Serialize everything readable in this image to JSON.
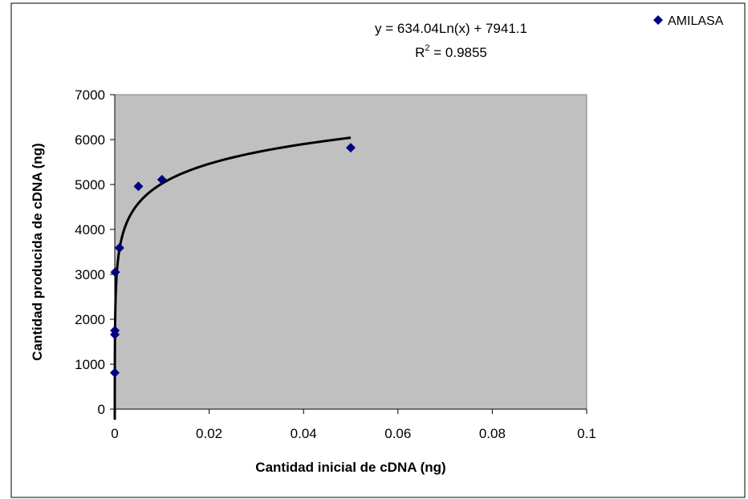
{
  "chart_data": {
    "type": "scatter",
    "title": "",
    "xlabel": "Cantidad inicial de cDNA (ng)",
    "ylabel": "Cantidad producida de cDNA (ng)",
    "xlim": [
      0,
      0.1
    ],
    "ylim": [
      0,
      7000
    ],
    "x_ticks": [
      "0",
      "0.02",
      "0.04",
      "0.06",
      "0.08",
      "0.1"
    ],
    "y_ticks": [
      "0",
      "1000",
      "2000",
      "3000",
      "4000",
      "5000",
      "6000",
      "7000"
    ],
    "grid": false,
    "plot_background": "#c0c0c0",
    "series": [
      {
        "name": "AMILASA",
        "marker": "diamond",
        "color": "#000080",
        "x": [
          1e-06,
          1e-05,
          2e-05,
          0.0001,
          0.001,
          0.005,
          0.01,
          0.05
        ],
        "y": [
          810,
          1660,
          1750,
          3050,
          3590,
          4960,
          5110,
          5820
        ]
      }
    ],
    "trendline": {
      "type": "logarithmic",
      "a": 634.04,
      "b": 7941.1,
      "x_range": [
        2.5e-06,
        0.05
      ],
      "color": "#000000",
      "equation": "y = 634.04Ln(x) + 7941.1",
      "r2_label": "R",
      "r2_sup": "2",
      "r2_value": " = 0.9855"
    },
    "legend": {
      "position": "top-right",
      "label": "AMILASA"
    }
  }
}
